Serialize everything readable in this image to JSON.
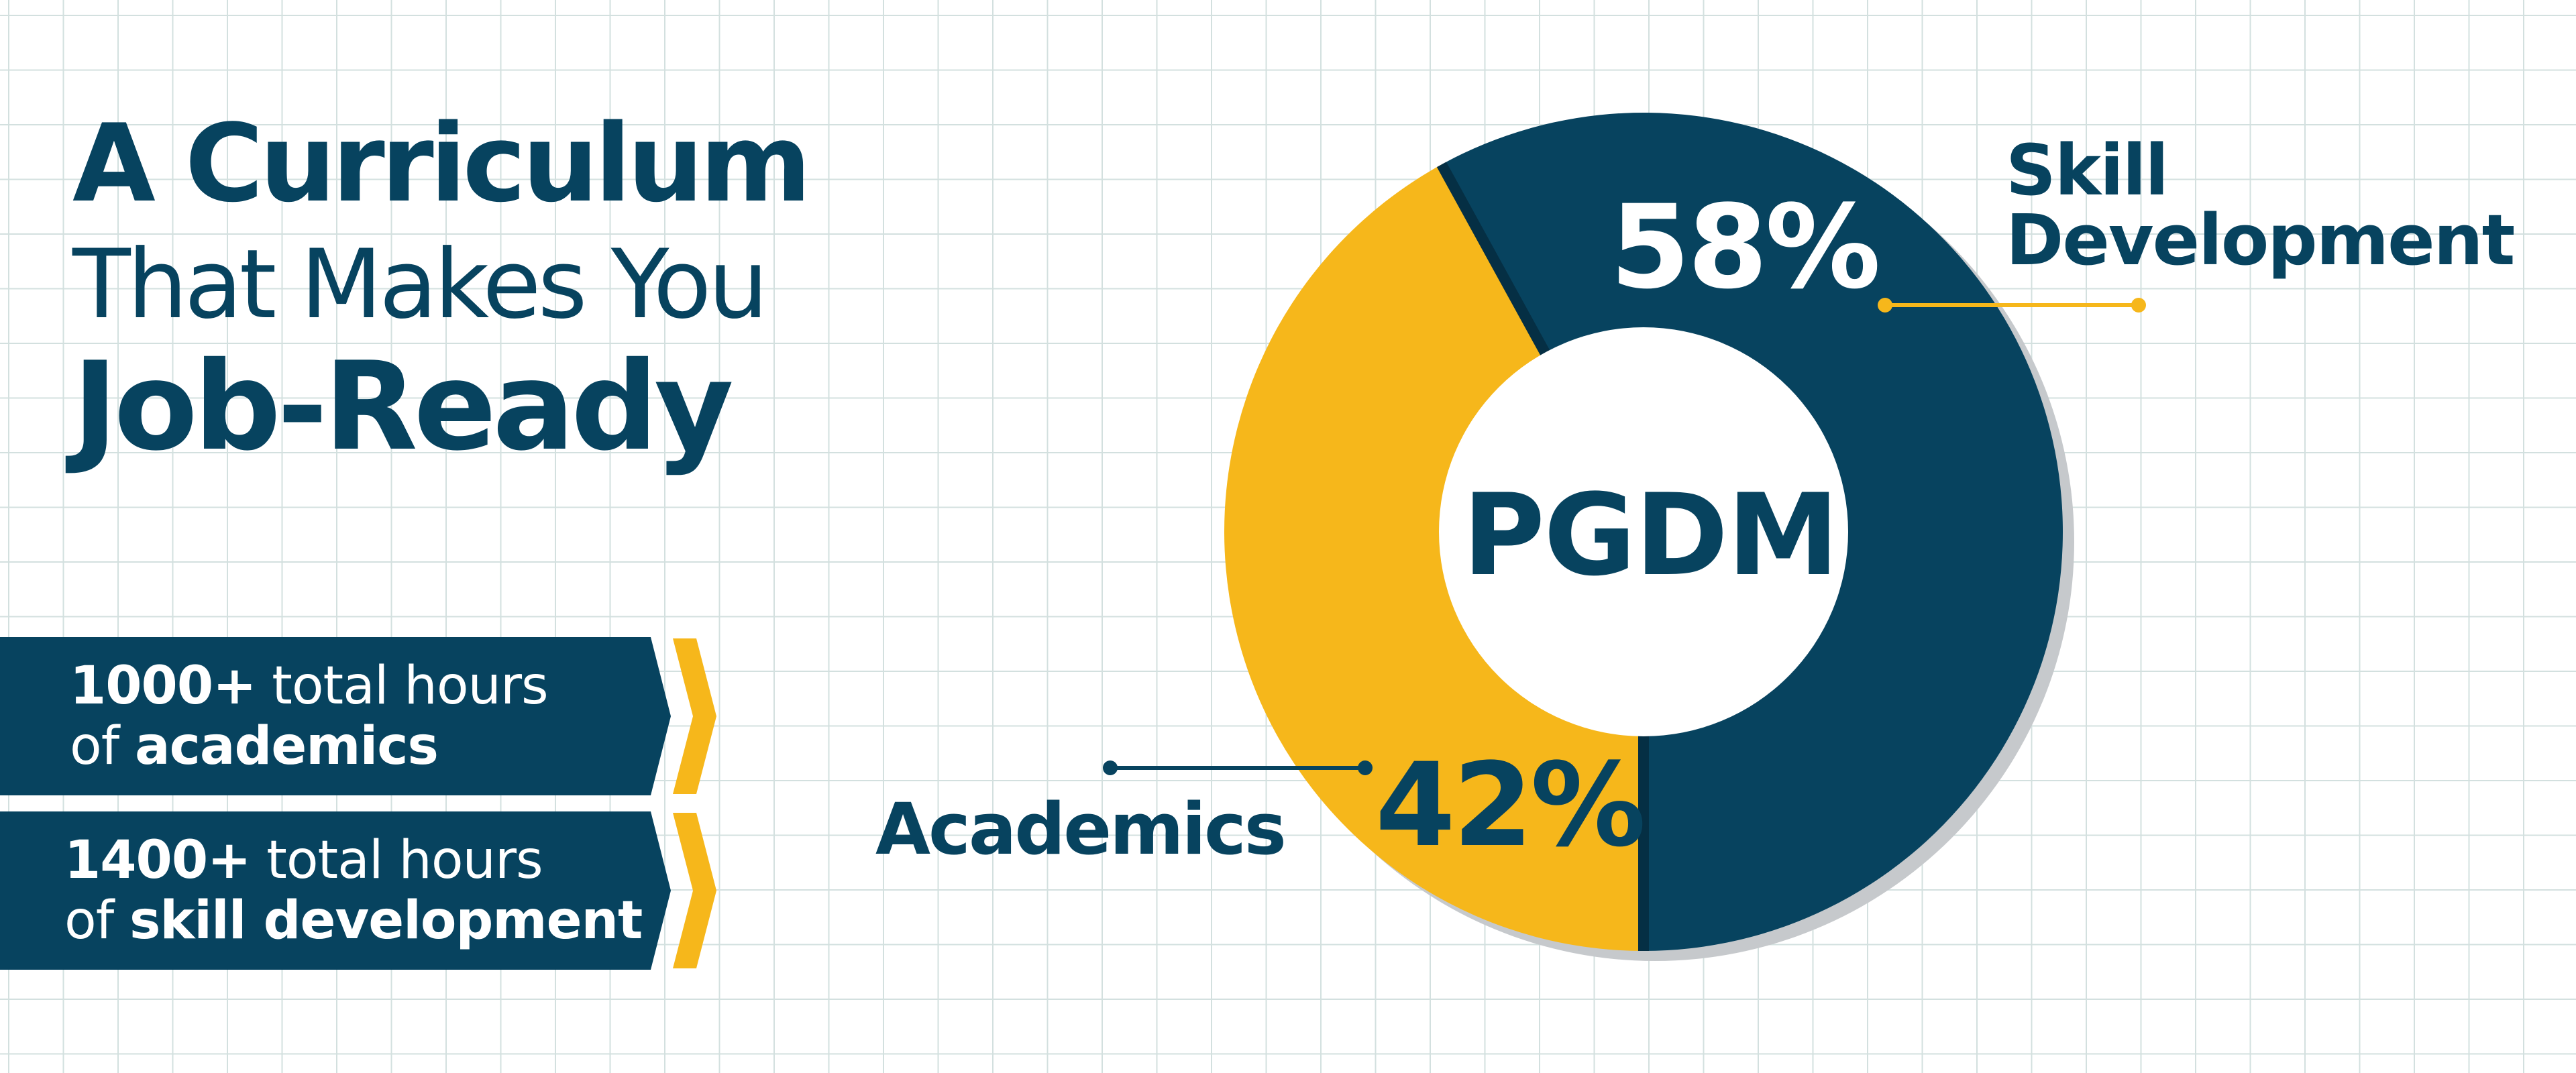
{
  "heading": {
    "line1": "A Curriculum",
    "line2": "That Makes You",
    "line3": "Job-Ready"
  },
  "banners": [
    {
      "number": "1000+",
      "text1": " total hours",
      "prefix2": "of ",
      "bold2": "academics"
    },
    {
      "number": "1400+",
      "text1": " total hours",
      "prefix2": "of ",
      "bold2": "skill development"
    }
  ],
  "colors": {
    "navy": "#07435f",
    "yellow": "#f6b71b",
    "shadow": "#c6c9cc",
    "white": "#ffffff"
  },
  "chart_data": {
    "type": "pie",
    "center_label": "PGDM",
    "slices": [
      {
        "name": "Skill Development",
        "label_line1": "Skill",
        "label_line2": "Development",
        "value": 58,
        "value_label": "58%",
        "color": "#07435f"
      },
      {
        "name": "Academics",
        "label": "Academics",
        "value": 42,
        "value_label": "42%",
        "color": "#f6b71b"
      }
    ]
  }
}
